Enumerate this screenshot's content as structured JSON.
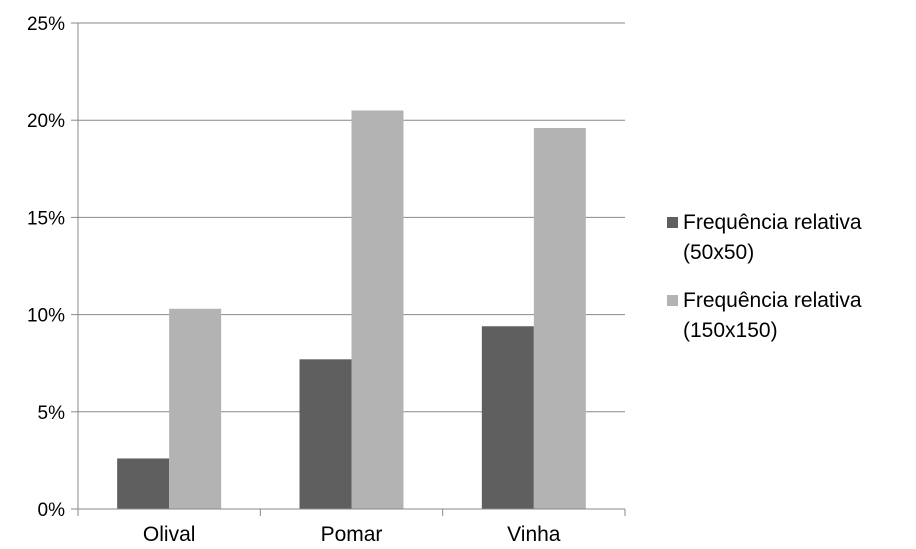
{
  "chart_data": {
    "type": "bar",
    "categories": [
      "Olival",
      "Pomar",
      "Vinha"
    ],
    "series": [
      {
        "name": "Frequência relativa (50x50)",
        "values": [
          2.6,
          7.7,
          9.4
        ],
        "color": "#5f5f5f"
      },
      {
        "name": "Frequência relativa (150x150)",
        "values": [
          10.3,
          20.5,
          19.6
        ],
        "color": "#b3b3b3"
      }
    ],
    "y_ticks": [
      "0%",
      "5%",
      "10%",
      "15%",
      "20%",
      "25%"
    ],
    "ylim": [
      0,
      25
    ],
    "grid": true,
    "legend": "right",
    "title": "",
    "xlabel": "",
    "ylabel": ""
  }
}
